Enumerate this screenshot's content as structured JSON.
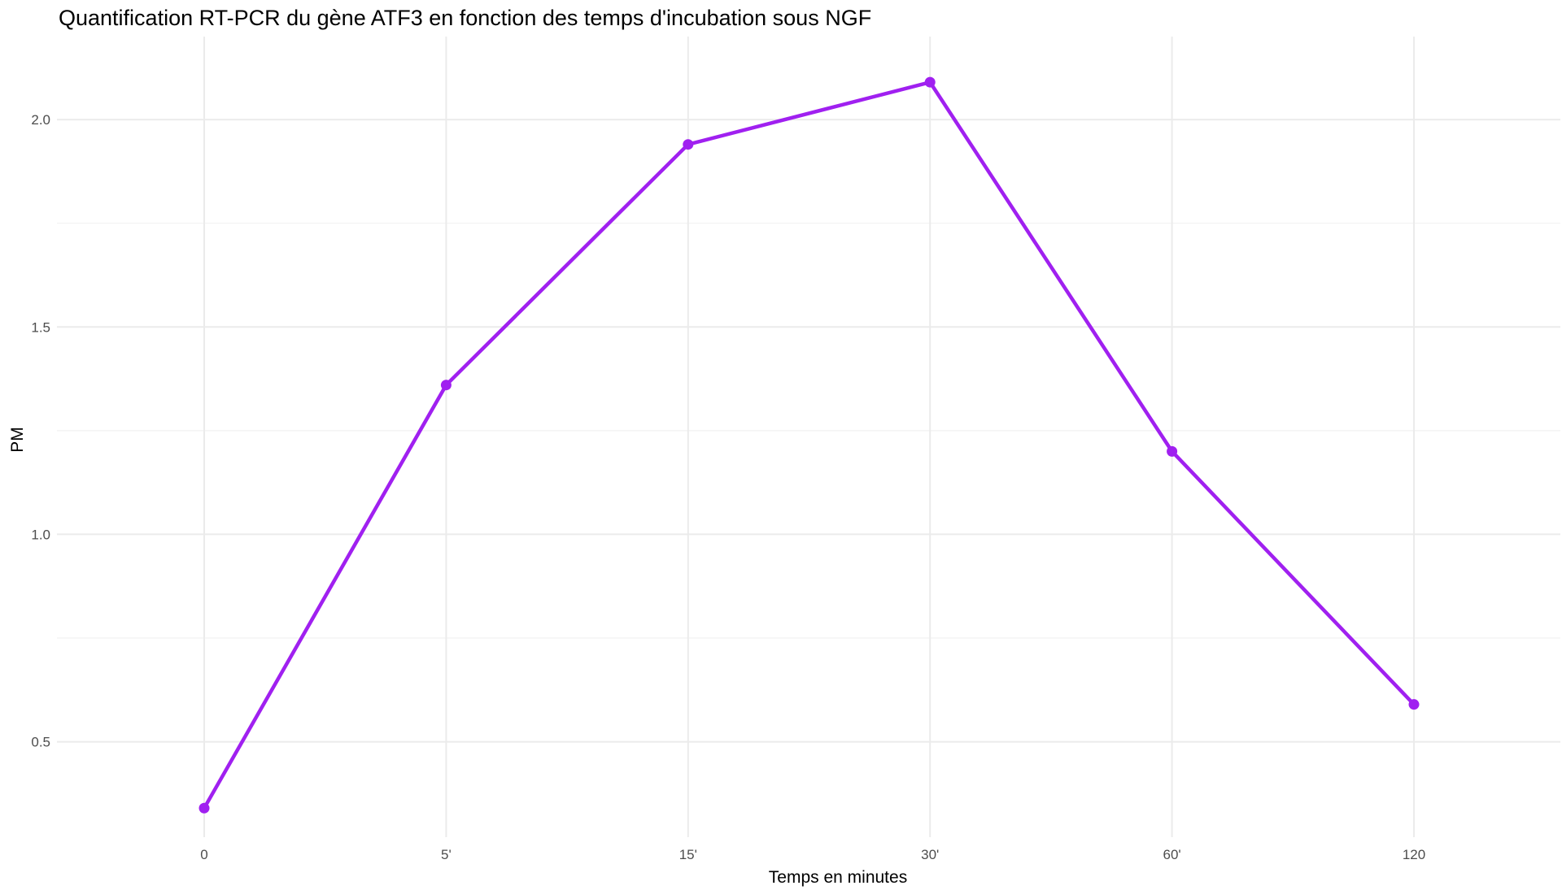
{
  "chart_data": {
    "type": "line",
    "title": "Quantification RT-PCR du gène ATF3 en fonction des temps d'incubation sous NGF",
    "xlabel": "Temps en minutes",
    "ylabel": "PM",
    "categories": [
      "0",
      "5'",
      "15'",
      "30'",
      "60'",
      "120"
    ],
    "values": [
      0.34,
      1.36,
      1.94,
      2.09,
      1.2,
      0.59
    ],
    "ylim": [
      0.27,
      2.2
    ],
    "yticks": [
      "0.5",
      "1.0",
      "1.5",
      "2.0"
    ],
    "grid": true,
    "legend": "none",
    "line_color": "#a020f0",
    "point_color": "#a020f0"
  }
}
